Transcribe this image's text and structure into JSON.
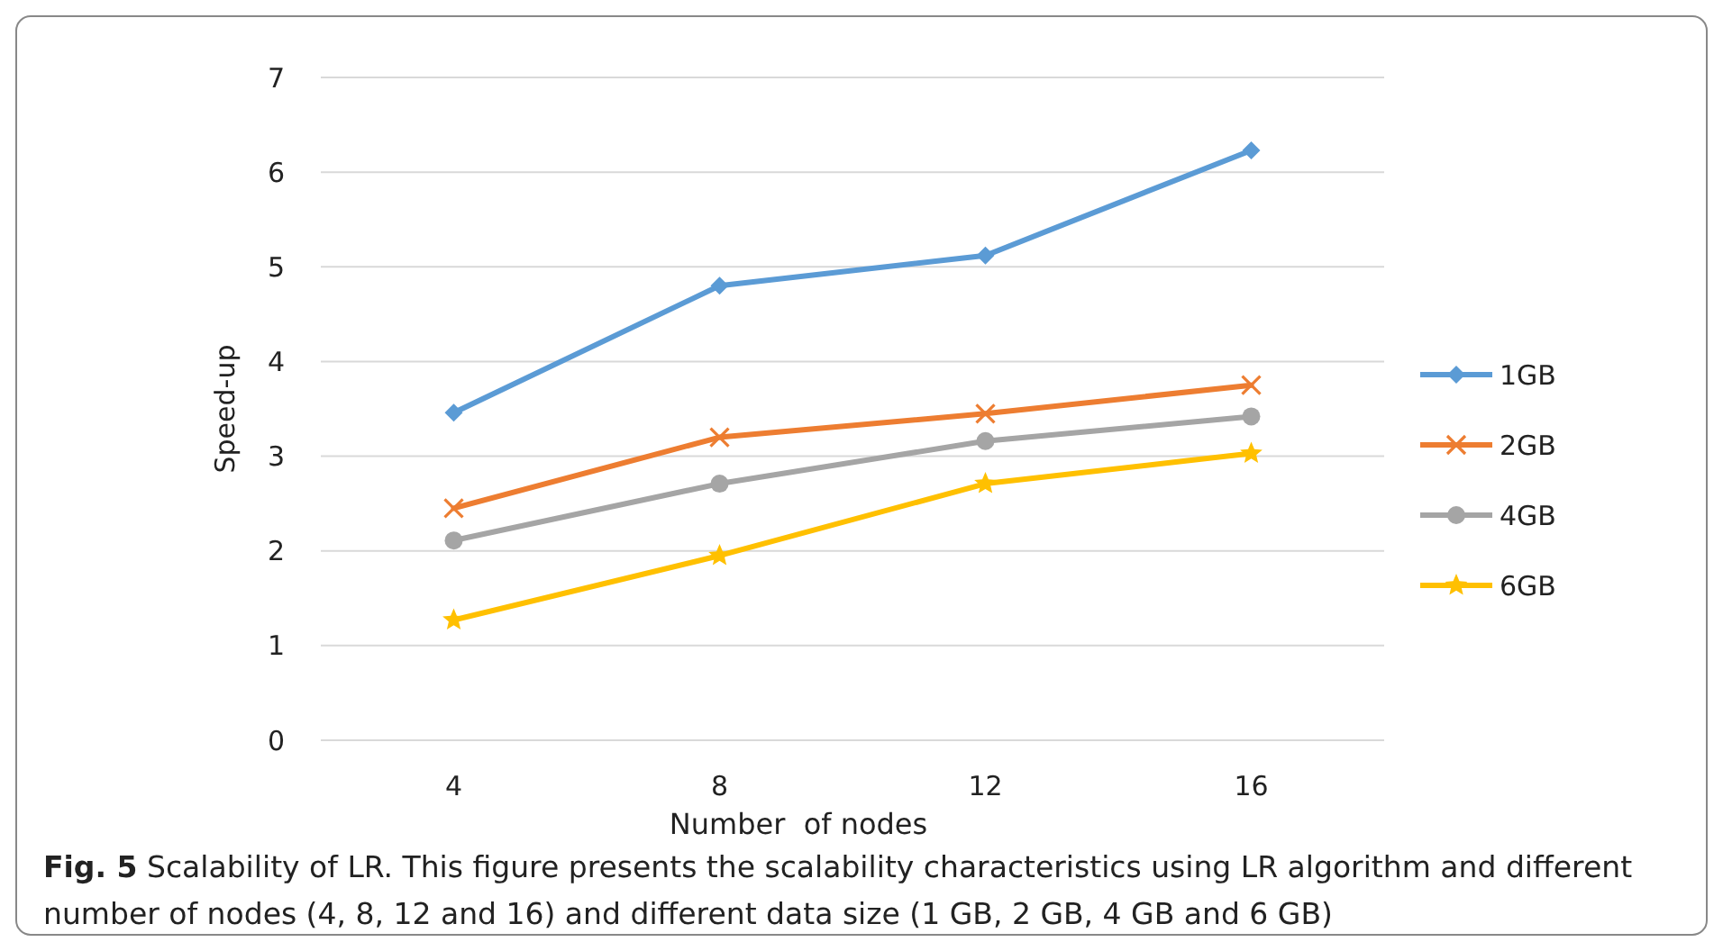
{
  "chart_data": {
    "type": "line",
    "title": "Fig. 5",
    "xlabel": "Number  of nodes",
    "ylabel": "Speed-up",
    "annotations": [
      "Scalability of LR. This figure presents the scalability characteristics using LR algorithm and different number of nodes (4, 8, 12 and 16) and different data size (1 GB, 2 GB, 4 GB and 6 GB)"
    ],
    "categories": [
      "4",
      "8",
      "12",
      "16"
    ],
    "series": [
      {
        "name": "1GB",
        "color": "#5b9bd5",
        "marker": "diamond",
        "values": [
          3.46,
          4.8,
          5.12,
          6.23
        ]
      },
      {
        "name": "2GB",
        "color": "#ed7d31",
        "marker": "cross",
        "values": [
          2.45,
          3.2,
          3.45,
          3.75
        ]
      },
      {
        "name": "4GB",
        "color": "#a5a5a5",
        "marker": "circle",
        "values": [
          2.11,
          2.71,
          3.16,
          3.42
        ]
      },
      {
        "name": "6GB",
        "color": "#ffc000",
        "marker": "star",
        "values": [
          1.27,
          1.95,
          2.71,
          3.03
        ]
      }
    ],
    "ylim": [
      0,
      7
    ],
    "yticks": [
      0,
      1,
      2,
      3,
      4,
      5,
      6,
      7
    ],
    "grid": "y",
    "legend": "right"
  }
}
